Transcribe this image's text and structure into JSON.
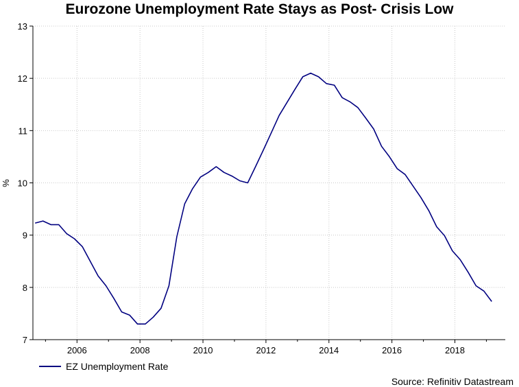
{
  "chart_data": {
    "type": "line",
    "title": "Eurozone Unemployment Rate Stays as Post- Crisis Low",
    "xlabel": "",
    "ylabel": "%",
    "xlim": [
      2004.6,
      2019.6
    ],
    "ylim": [
      7,
      13
    ],
    "x_ticks": [
      2006,
      2008,
      2010,
      2012,
      2014,
      2016,
      2018
    ],
    "y_ticks": [
      7,
      8,
      9,
      10,
      11,
      12,
      13
    ],
    "grid": true,
    "legend": "bottom-left",
    "line_color": "#000080",
    "series": [
      {
        "name": "EZ Unemployment Rate",
        "x": [
          2004.67,
          2004.92,
          2005.17,
          2005.42,
          2005.67,
          2005.92,
          2006.17,
          2006.42,
          2006.67,
          2006.92,
          2007.17,
          2007.42,
          2007.67,
          2007.92,
          2008.17,
          2008.42,
          2008.67,
          2008.92,
          2009.17,
          2009.42,
          2009.67,
          2009.92,
          2010.17,
          2010.42,
          2010.67,
          2010.92,
          2011.17,
          2011.42,
          2011.67,
          2011.92,
          2012.17,
          2012.42,
          2012.67,
          2012.92,
          2013.17,
          2013.42,
          2013.67,
          2013.92,
          2014.17,
          2014.42,
          2014.67,
          2014.92,
          2015.17,
          2015.42,
          2015.67,
          2015.92,
          2016.17,
          2016.42,
          2016.67,
          2016.92,
          2017.17,
          2017.42,
          2017.67,
          2017.92,
          2018.17,
          2018.42,
          2018.67,
          2018.92,
          2019.17
        ],
        "values": [
          9.23,
          9.27,
          9.2,
          9.2,
          9.03,
          8.93,
          8.78,
          8.5,
          8.22,
          8.03,
          7.79,
          7.53,
          7.47,
          7.3,
          7.3,
          7.43,
          7.6,
          8.03,
          8.97,
          9.6,
          9.89,
          10.11,
          10.2,
          10.31,
          10.2,
          10.13,
          10.04,
          10.0,
          10.31,
          10.63,
          10.96,
          11.29,
          11.54,
          11.79,
          12.03,
          12.1,
          12.03,
          11.9,
          11.87,
          11.63,
          11.55,
          11.44,
          11.24,
          11.03,
          10.7,
          10.5,
          10.27,
          10.16,
          9.94,
          9.72,
          9.47,
          9.16,
          8.99,
          8.7,
          8.53,
          8.29,
          8.03,
          7.93,
          7.73
        ]
      }
    ]
  },
  "source_text": "Source: Refinitiv Datastream"
}
